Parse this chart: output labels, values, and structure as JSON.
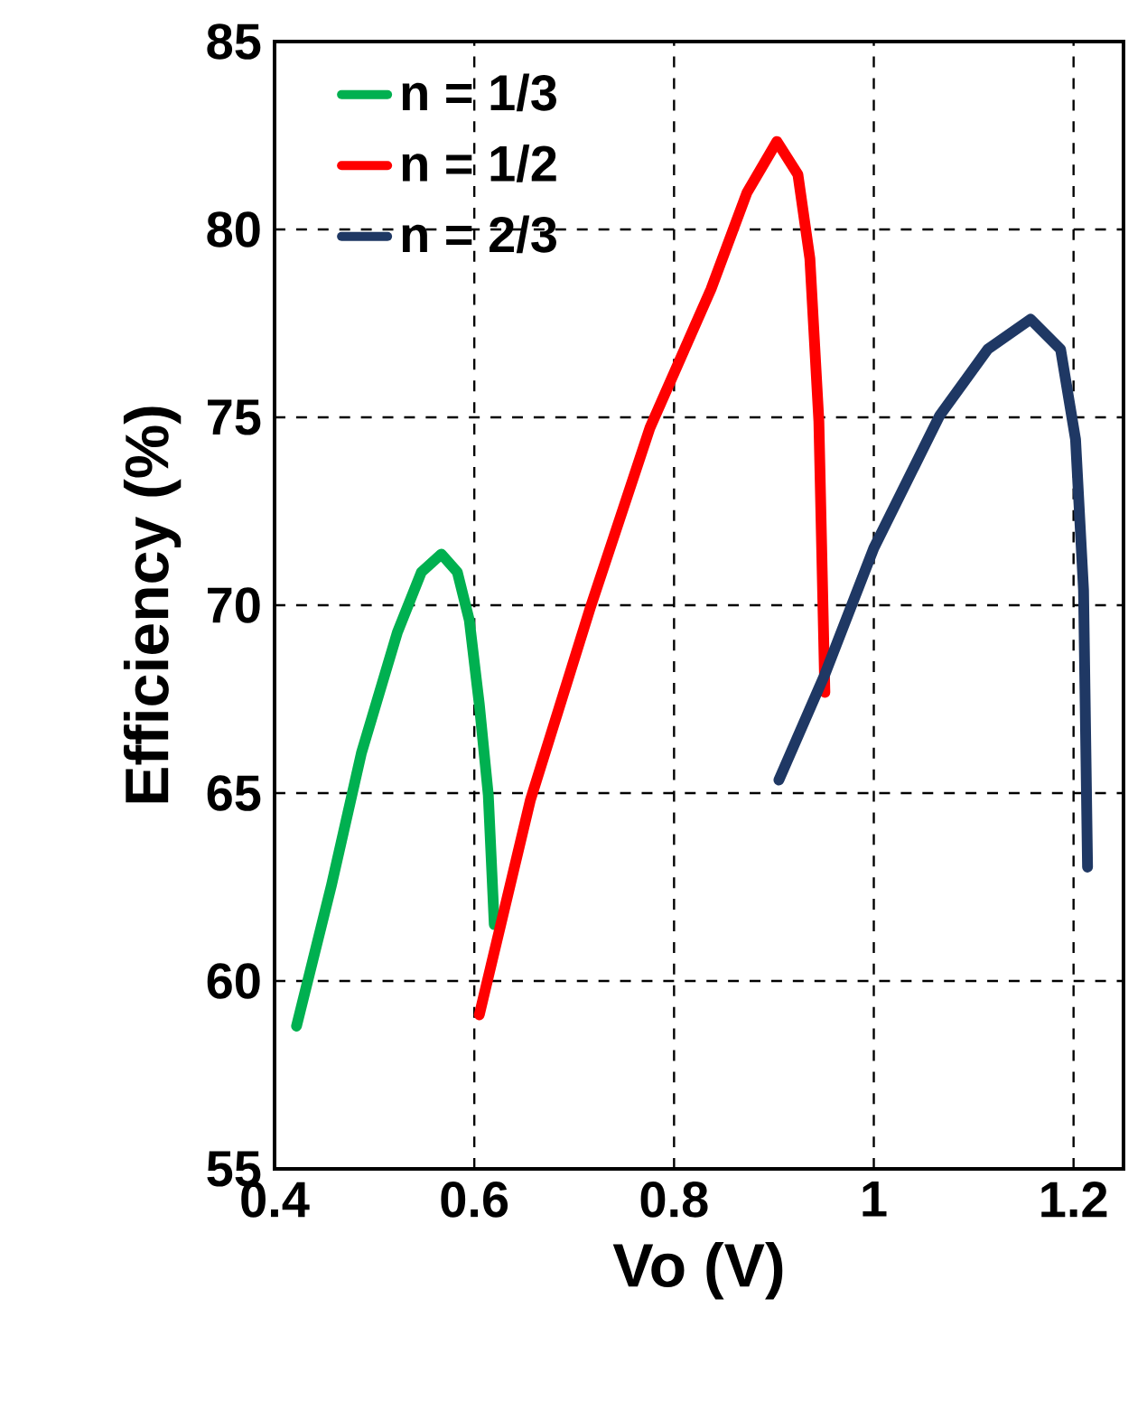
{
  "chart_data": {
    "type": "line",
    "xlabel": "Vo (V)",
    "ylabel": "Efficiency (%)",
    "xlim": [
      0.4,
      1.25
    ],
    "ylim": [
      55,
      85
    ],
    "xticks": [
      0.4,
      0.6,
      0.8,
      1,
      1.2
    ],
    "yticks": [
      55,
      60,
      65,
      70,
      75,
      80,
      85
    ],
    "grid": true,
    "legend": "top left",
    "marker": "none",
    "line_style": "solid",
    "series": [
      {
        "name": "n = 1/3",
        "color": "#00b050",
        "x": [
          0.422,
          0.457,
          0.487,
          0.523,
          0.547,
          0.567,
          0.583,
          0.595,
          0.605,
          0.614,
          0.62
        ],
        "values": [
          58.8,
          62.55,
          66.07,
          69.28,
          70.88,
          71.36,
          70.88,
          69.6,
          67.36,
          64.95,
          61.5
        ]
      },
      {
        "name": "n = 1/2",
        "color": "#ff0000",
        "x": [
          0.605,
          0.656,
          0.716,
          0.776,
          0.837,
          0.873,
          0.903,
          0.924,
          0.936,
          0.945,
          0.951
        ],
        "values": [
          59.1,
          64.8,
          69.92,
          74.73,
          78.41,
          80.98,
          82.34,
          81.46,
          79.22,
          74.89,
          67.68
        ]
      },
      {
        "name": "n = 2/3",
        "color": "#1f3864",
        "x": [
          0.905,
          0.951,
          1.0,
          1.066,
          1.114,
          1.157,
          1.187,
          1.202,
          1.21,
          1.214
        ],
        "values": [
          65.35,
          68.16,
          71.52,
          75.05,
          76.81,
          77.61,
          76.81,
          74.41,
          70.4,
          63.03
        ]
      }
    ]
  }
}
